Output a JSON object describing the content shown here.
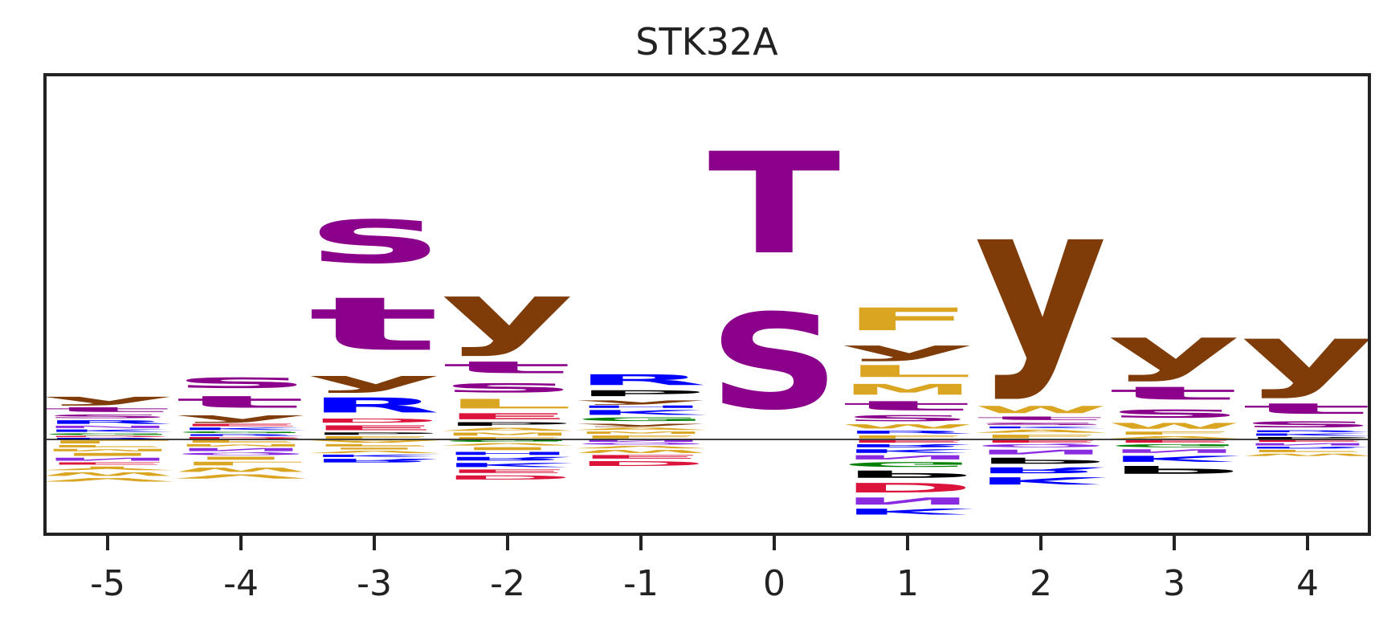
{
  "chart_data": {
    "type": "sequence-logo",
    "title": "STK32A",
    "xlabel": "",
    "ylabel": "",
    "positions": [
      -5,
      -4,
      -3,
      -2,
      -1,
      0,
      1,
      2,
      3,
      4
    ],
    "tick_labels": [
      "-5",
      "-4",
      "-3",
      "-2",
      "-1",
      "0",
      "1",
      "2",
      "3",
      "4"
    ],
    "ylim": [
      -1.0,
      3.8
    ],
    "baseline": 0,
    "grid": false,
    "legend": "none",
    "colors": {
      "y": "#7f3b08",
      "S": "#8b008b",
      "T": "#8b008b",
      "s": "#8b008b",
      "t": "#8b008b",
      "R": "#0000ff",
      "K": "#0000ff",
      "H": "#0000ff",
      "D": "#dc143c",
      "E": "#dc143c",
      "P": "#000000",
      "F": "#daa520",
      "M": "#daa520",
      "W": "#daa520",
      "L": "#daa520",
      "V": "#daa520",
      "I": "#daa520",
      "A": "#daa520",
      "Y": "#daa520",
      "G": "#008000",
      "N": "#8a2be2",
      "Q": "#8a2be2",
      "C": "#daa520"
    },
    "stacks": [
      {
        "pos": "-5",
        "positive": [
          [
            "R",
            0.02
          ],
          [
            "D",
            0.02
          ],
          [
            "G",
            0.03
          ],
          [
            "K",
            0.04
          ],
          [
            "N",
            0.04
          ],
          [
            "R",
            0.06
          ],
          [
            "S",
            0.06
          ],
          [
            "t",
            0.08
          ],
          [
            "y",
            0.14
          ]
        ],
        "negative": [
          [
            "L",
            0.05
          ],
          [
            "F",
            0.04
          ],
          [
            "M",
            0.04
          ],
          [
            "I",
            0.05
          ],
          [
            "N",
            0.05
          ],
          [
            "E",
            0.04
          ],
          [
            "Y",
            0.06
          ],
          [
            "W",
            0.06
          ],
          [
            "V",
            0.06
          ]
        ]
      },
      {
        "pos": "-4",
        "positive": [
          [
            "D",
            0.03
          ],
          [
            "R",
            0.03
          ],
          [
            "G",
            0.03
          ],
          [
            "K",
            0.04
          ],
          [
            "E",
            0.04
          ],
          [
            "y",
            0.12
          ],
          [
            "t",
            0.2
          ],
          [
            "s",
            0.23
          ]
        ],
        "negative": [
          [
            "F",
            0.04
          ],
          [
            "M",
            0.04
          ],
          [
            "N",
            0.05
          ],
          [
            "Q",
            0.04
          ],
          [
            "I",
            0.05
          ],
          [
            "L",
            0.06
          ],
          [
            "W",
            0.07
          ],
          [
            "V",
            0.07
          ]
        ]
      },
      {
        "pos": "-3",
        "positive": [
          [
            "F",
            0.04
          ],
          [
            "P",
            0.04
          ],
          [
            "E",
            0.08
          ],
          [
            "D",
            0.07
          ],
          [
            "R",
            0.25
          ],
          [
            "y",
            0.27
          ],
          [
            "t",
            0.9
          ],
          [
            "s",
            0.95
          ]
        ],
        "negative": [
          [
            "A",
            0.04
          ],
          [
            "F",
            0.04
          ],
          [
            "I",
            0.03
          ],
          [
            "V",
            0.04
          ],
          [
            "K",
            0.04
          ],
          [
            "R",
            0.06
          ]
        ]
      },
      {
        "pos": "-2",
        "positive": [
          [
            "F",
            0.03
          ],
          [
            "M",
            0.05
          ],
          [
            "A",
            0.05
          ],
          [
            "P",
            0.06
          ],
          [
            "E",
            0.1
          ],
          [
            "L",
            0.16
          ],
          [
            "s",
            0.2
          ],
          [
            "t",
            0.2
          ],
          [
            "y",
            0.95
          ]
        ],
        "negative": [
          [
            "G",
            0.03
          ],
          [
            "V",
            0.04
          ],
          [
            "I",
            0.05
          ],
          [
            "H",
            0.05
          ],
          [
            "R",
            0.06
          ],
          [
            "K",
            0.07
          ],
          [
            "E",
            0.06
          ],
          [
            "D",
            0.07
          ]
        ]
      },
      {
        "pos": "-1",
        "positive": [
          [
            "F",
            0.05
          ],
          [
            "M",
            0.04
          ],
          [
            "A",
            0.04
          ],
          [
            "y",
            0.05
          ],
          [
            "G",
            0.06
          ],
          [
            "K",
            0.08
          ],
          [
            "H",
            0.04
          ],
          [
            "y",
            0.07
          ],
          [
            "P",
            0.1
          ],
          [
            "R",
            0.18
          ]
        ],
        "negative": [
          [
            "N",
            0.03
          ],
          [
            "Q",
            0.03
          ],
          [
            "V",
            0.04
          ],
          [
            "W",
            0.05
          ],
          [
            "E",
            0.06
          ],
          [
            "D",
            0.08
          ]
        ]
      },
      {
        "pos": "0",
        "positive": [
          [
            "S",
            1.6
          ],
          [
            "T",
            1.7
          ]
        ],
        "negative": []
      },
      {
        "pos": "1",
        "positive": [
          [
            "F",
            0.05
          ],
          [
            "R",
            0.05
          ],
          [
            "W",
            0.07
          ],
          [
            "S",
            0.1
          ],
          [
            "t",
            0.16
          ],
          [
            "M",
            0.18
          ],
          [
            "L",
            0.2
          ],
          [
            "y",
            0.25
          ],
          [
            "F",
            0.38
          ]
        ],
        "negative": [
          [
            "E",
            0.04
          ],
          [
            "R",
            0.05
          ],
          [
            "K",
            0.06
          ],
          [
            "N",
            0.07
          ],
          [
            "G",
            0.08
          ],
          [
            "P",
            0.12
          ],
          [
            "D",
            0.16
          ],
          [
            "N",
            0.12
          ],
          [
            "K",
            0.1
          ]
        ]
      },
      {
        "pos": "2",
        "positive": [
          [
            "F",
            0.06
          ],
          [
            "A",
            0.05
          ],
          [
            "K",
            0.03
          ],
          [
            "s",
            0.05
          ],
          [
            "t",
            0.06
          ],
          [
            "W",
            0.12
          ],
          [
            "y",
            2.55
          ]
        ],
        "negative": [
          [
            "E",
            0.04
          ],
          [
            "Q",
            0.05
          ],
          [
            "N",
            0.08
          ],
          [
            "P",
            0.1
          ],
          [
            "R",
            0.1
          ],
          [
            "K",
            0.12
          ]
        ]
      },
      {
        "pos": "3",
        "positive": [
          [
            "A",
            0.04
          ],
          [
            "F",
            0.05
          ],
          [
            "W",
            0.1
          ],
          [
            "s",
            0.18
          ],
          [
            "t",
            0.22
          ],
          [
            "y",
            0.7
          ]
        ],
        "negative": [
          [
            "E",
            0.04
          ],
          [
            "G",
            0.05
          ],
          [
            "N",
            0.06
          ],
          [
            "K",
            0.1
          ],
          [
            "P",
            0.13
          ]
        ]
      },
      {
        "pos": "4",
        "positive": [
          [
            "P",
            0.03
          ],
          [
            "K",
            0.04
          ],
          [
            "R",
            0.03
          ],
          [
            "s",
            0.13
          ],
          [
            "t",
            0.18
          ],
          [
            "y",
            0.95
          ]
        ],
        "negative": [
          [
            "E",
            0.03
          ],
          [
            "N",
            0.04
          ],
          [
            "R",
            0.03
          ],
          [
            "F",
            0.04
          ],
          [
            "W",
            0.04
          ]
        ]
      }
    ]
  }
}
